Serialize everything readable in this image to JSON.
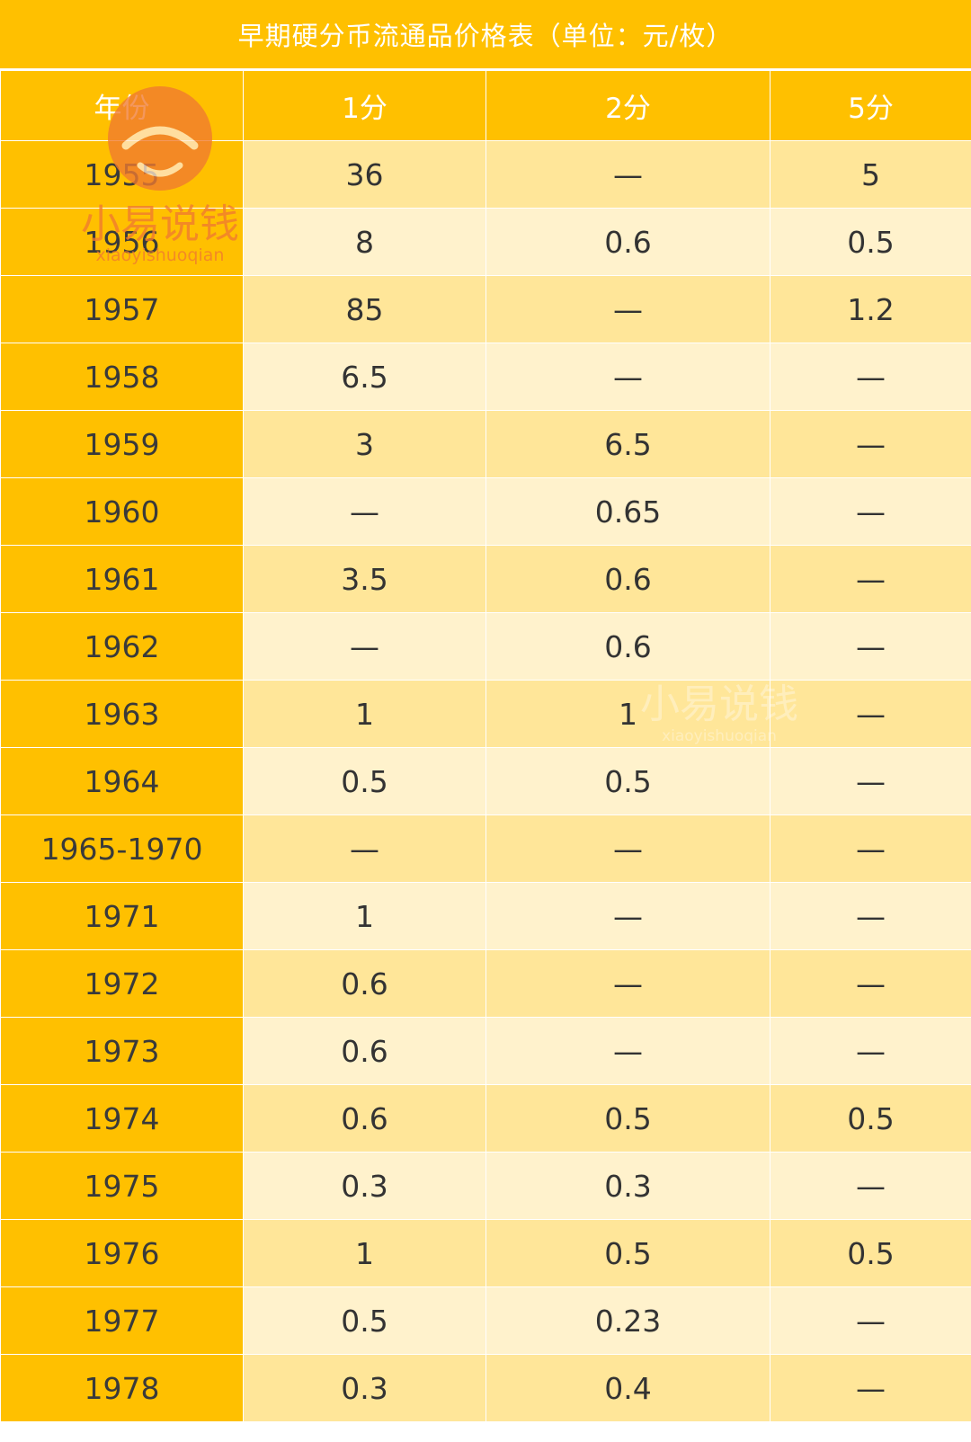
{
  "title": "早期硬分币流通品价格表（单位：元/枚）",
  "header": {
    "year": "年份",
    "fen1": "1分",
    "fen2": "2分",
    "fen5": "5分"
  },
  "rows": [
    {
      "year": "1955",
      "fen1": "36",
      "fen2": "—",
      "fen5": "5"
    },
    {
      "year": "1956",
      "fen1": "8",
      "fen2": "0.6",
      "fen5": "0.5"
    },
    {
      "year": "1957",
      "fen1": "85",
      "fen2": "—",
      "fen5": "1.2"
    },
    {
      "year": "1958",
      "fen1": "6.5",
      "fen2": "—",
      "fen5": "—"
    },
    {
      "year": "1959",
      "fen1": "3",
      "fen2": "6.5",
      "fen5": "—"
    },
    {
      "year": "1960",
      "fen1": "—",
      "fen2": "0.65",
      "fen5": "—"
    },
    {
      "year": "1961",
      "fen1": "3.5",
      "fen2": "0.6",
      "fen5": "—"
    },
    {
      "year": "1962",
      "fen1": "—",
      "fen2": "0.6",
      "fen5": "—"
    },
    {
      "year": "1963",
      "fen1": "1",
      "fen2": "1",
      "fen5": "—"
    },
    {
      "year": "1964",
      "fen1": "0.5",
      "fen2": "0.5",
      "fen5": "—"
    },
    {
      "year": "1965-1970",
      "fen1": "—",
      "fen2": "—",
      "fen5": "—"
    },
    {
      "year": "1971",
      "fen1": "1",
      "fen2": "—",
      "fen5": "—"
    },
    {
      "year": "1972",
      "fen1": "0.6",
      "fen2": "—",
      "fen5": "—"
    },
    {
      "year": "1973",
      "fen1": "0.6",
      "fen2": "—",
      "fen5": "—"
    },
    {
      "year": "1974",
      "fen1": "0.6",
      "fen2": "0.5",
      "fen5": "0.5"
    },
    {
      "year": "1975",
      "fen1": "0.3",
      "fen2": "0.3",
      "fen5": "—"
    },
    {
      "year": "1976",
      "fen1": "1",
      "fen2": "0.5",
      "fen5": "0.5"
    },
    {
      "year": "1977",
      "fen1": "0.5",
      "fen2": "0.23",
      "fen5": "—"
    },
    {
      "year": "1978",
      "fen1": "0.3",
      "fen2": "0.4",
      "fen5": "—"
    }
  ],
  "watermark": {
    "brand": "小易说钱",
    "romanized": "xiaoyishuoqian"
  },
  "colors": {
    "header_bg": "#ffc000",
    "row_dark": "#ffe699",
    "row_light": "#fff2cc",
    "watermark": "#f07a30"
  }
}
